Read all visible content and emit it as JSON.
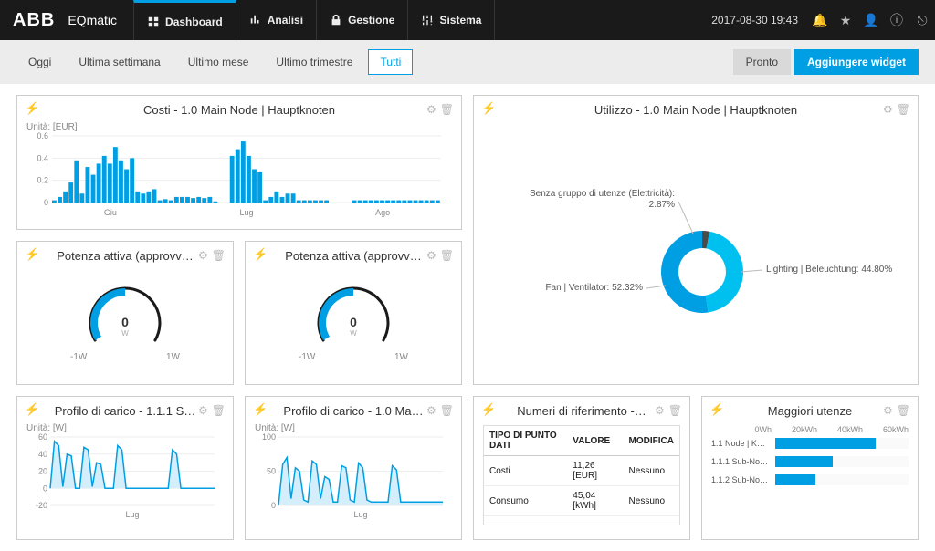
{
  "brand": {
    "logo": "ABB",
    "product": "EQmatic"
  },
  "nav": [
    {
      "label": "Dashboard",
      "icon": "gauge",
      "active": true
    },
    {
      "label": "Analisi",
      "icon": "chart",
      "active": false
    },
    {
      "label": "Gestione",
      "icon": "lock",
      "active": false
    },
    {
      "label": "Sistema",
      "icon": "sliders",
      "active": false
    }
  ],
  "datetime": "2017-08-30 19:43",
  "periods": [
    {
      "label": "Oggi",
      "active": false
    },
    {
      "label": "Ultima settimana",
      "active": false
    },
    {
      "label": "Ultimo mese",
      "active": false
    },
    {
      "label": "Ultimo trimestre",
      "active": false
    },
    {
      "label": "Tutti",
      "active": true
    }
  ],
  "buttons": {
    "ready": "Pronto",
    "add_widget": "Aggiungere widget"
  },
  "colors": {
    "accent": "#009fe3",
    "text": "#333333",
    "muted": "#888888",
    "panel_border": "#cccccc",
    "bg": "#ffffff"
  },
  "costi": {
    "title": "Costi - 1.0 Main Node | Hauptknoten",
    "unit_label": "Unità: [EUR]",
    "yticks": [
      0,
      0.2,
      0.4,
      0.6
    ],
    "ymax": 0.6,
    "xlabels": [
      "Giu",
      "Lug",
      "Ago"
    ],
    "values": [
      0.02,
      0.05,
      0.1,
      0.18,
      0.38,
      0.08,
      0.32,
      0.25,
      0.35,
      0.42,
      0.35,
      0.5,
      0.38,
      0.3,
      0.4,
      0.1,
      0.08,
      0.1,
      0.12,
      0.02,
      0.03,
      0.02,
      0.05,
      0.05,
      0.05,
      0.04,
      0.05,
      0.04,
      0.05,
      0.01,
      0,
      0,
      0.42,
      0.48,
      0.55,
      0.42,
      0.3,
      0.28,
      0.02,
      0.05,
      0.1,
      0.05,
      0.08,
      0.08,
      0.02,
      0.02,
      0.02,
      0.02,
      0.02,
      0.02,
      0,
      0,
      0,
      0,
      0.02,
      0.02,
      0.02,
      0.02,
      0.02,
      0.02,
      0.02,
      0.02,
      0.02,
      0.02,
      0.02,
      0.02,
      0.02,
      0.02,
      0.02,
      0.02
    ],
    "bar_color": "#009fe3"
  },
  "utilizzo": {
    "title": "Utilizzo - 1.0 Main Node | Hauptknoten",
    "slices": [
      {
        "label": "Senza gruppo di utenze (Elettricità): 2.87%",
        "value": 2.87,
        "color": "#4a4a4a"
      },
      {
        "label": "Lighting | Beleuchtung: 44.80%",
        "value": 44.8,
        "color": "#00c0f0"
      },
      {
        "label": "Fan | Ventilator: 52.32%",
        "value": 52.32,
        "color": "#009fe3"
      }
    ]
  },
  "gauge1": {
    "title": "Potenza attiva (approvv…",
    "value": "0",
    "unit": "W",
    "min": "-1W",
    "max": "1W",
    "fill_pct": 50
  },
  "gauge2": {
    "title": "Potenza attiva (approvv…",
    "value": "0",
    "unit": "W",
    "min": "-1W",
    "max": "1W",
    "fill_pct": 50
  },
  "profilo1": {
    "title": "Profilo di carico - 1.1.1 S…",
    "unit_label": "Unità: [W]",
    "yticks": [
      -20,
      0,
      20,
      40,
      60
    ],
    "ymin": -20,
    "ymax": 60,
    "xlabel": "Lug",
    "values": [
      0,
      55,
      50,
      2,
      40,
      38,
      0,
      0,
      48,
      45,
      2,
      30,
      28,
      0,
      0,
      0,
      50,
      45,
      0,
      0,
      0,
      0,
      0,
      0,
      0,
      0,
      0,
      0,
      0,
      45,
      40,
      0,
      0,
      0,
      0,
      0,
      0,
      0,
      0,
      0
    ],
    "line_color": "#009fe3",
    "fill_color": "#d4eefc"
  },
  "profilo2": {
    "title": "Profilo di carico - 1.0 Ma…",
    "unit_label": "Unità: [W]",
    "yticks": [
      0,
      50,
      100
    ],
    "ymin": 0,
    "ymax": 100,
    "xlabel": "Lug",
    "values": [
      0,
      60,
      70,
      10,
      55,
      50,
      8,
      5,
      65,
      60,
      10,
      42,
      38,
      5,
      5,
      58,
      55,
      8,
      5,
      62,
      55,
      8,
      5,
      5,
      5,
      5,
      5,
      58,
      52,
      5,
      5,
      5,
      5,
      5,
      5,
      5,
      5,
      5,
      5,
      5
    ],
    "line_color": "#009fe3",
    "fill_color": "#d4eefc"
  },
  "numeri": {
    "title": "Numeri di riferimento -…",
    "columns": [
      "TIPO DI PUNTO DATI",
      "VALORE",
      "MODIFICA"
    ],
    "rows": [
      [
        "Costi",
        "11,26 [EUR]",
        "Nessuno"
      ],
      [
        "Consumo",
        "45,04 [kWh]",
        "Nessuno"
      ]
    ]
  },
  "maggiori": {
    "title": "Maggiori utenze",
    "axis": [
      "0Wh",
      "20kWh",
      "40kWh",
      "60kWh"
    ],
    "max": 60,
    "bars": [
      {
        "label": "1.1 Node | K…",
        "value": 45
      },
      {
        "label": "1.1.1 Sub-No…",
        "value": 26
      },
      {
        "label": "1.1.2 Sub-No…",
        "value": 18
      }
    ],
    "bar_color": "#009fe3"
  }
}
